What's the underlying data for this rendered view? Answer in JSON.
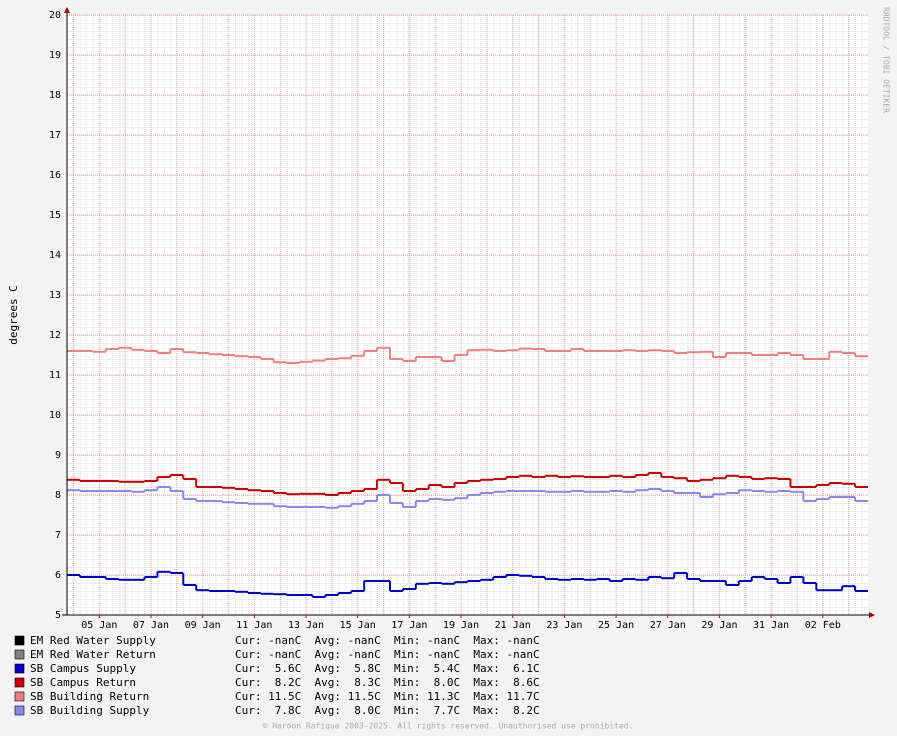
{
  "chart_data": {
    "type": "line",
    "step": true,
    "y_label": "degrees C",
    "watermark": "RRDTOOL / TOBI OETIKER",
    "footer": "© Haroon Rafique 2003-2025. All rights reserved. Unauthorised use prohibited.",
    "ylim": [
      5,
      20
    ],
    "yticks": [
      5,
      6,
      7,
      8,
      9,
      10,
      11,
      12,
      13,
      14,
      15,
      16,
      17,
      18,
      19,
      20
    ],
    "grid": true,
    "categories": [
      null,
      null,
      "05 Jan",
      null,
      null,
      null,
      "07 Jan",
      null,
      null,
      null,
      "09 Jan",
      null,
      null,
      null,
      "11 Jan",
      null,
      null,
      null,
      "13 Jan",
      null,
      null,
      null,
      "15 Jan",
      null,
      null,
      null,
      "17 Jan",
      null,
      null,
      null,
      "19 Jan",
      null,
      null,
      null,
      "21 Jan",
      null,
      null,
      null,
      "23 Jan",
      null,
      null,
      null,
      "25 Jan",
      null,
      null,
      null,
      "27 Jan",
      null,
      null,
      null,
      "29 Jan",
      null,
      null,
      null,
      "31 Jan",
      null,
      null,
      null,
      "02 Feb",
      null,
      null,
      null
    ],
    "series": [
      {
        "name": "EM Red Water Supply",
        "color": "#000000",
        "stats": "Cur: -nanC  Avg: -nanC  Min: -nanC  Max: -nanC"
      },
      {
        "name": "EM Red Water Return",
        "color": "#808080",
        "stats": "Cur: -nanC  Avg: -nanC  Min: -nanC  Max: -nanC"
      },
      {
        "name": "SB Campus Supply",
        "color": "#0000cc",
        "stats": "Cur:  5.6C  Avg:  5.8C  Min:  5.4C  Max:  6.1C",
        "values": [
          6.0,
          5.95,
          5.95,
          5.9,
          5.88,
          5.88,
          5.95,
          6.08,
          6.05,
          5.75,
          5.62,
          5.6,
          5.6,
          5.58,
          5.55,
          5.53,
          5.52,
          5.5,
          5.5,
          5.45,
          5.5,
          5.55,
          5.6,
          5.85,
          5.85,
          5.6,
          5.65,
          5.78,
          5.8,
          5.78,
          5.82,
          5.85,
          5.88,
          5.95,
          6.0,
          5.98,
          5.95,
          5.9,
          5.88,
          5.9,
          5.88,
          5.9,
          5.85,
          5.9,
          5.88,
          5.95,
          5.92,
          6.05,
          5.9,
          5.85,
          5.85,
          5.75,
          5.85,
          5.95,
          5.9,
          5.8,
          5.95,
          5.8,
          5.62,
          5.62,
          5.72,
          5.6
        ]
      },
      {
        "name": "SB Campus Return",
        "color": "#cc0000",
        "stats": "Cur:  8.2C  Avg:  8.3C  Min:  8.0C  Max:  8.6C",
        "values": [
          8.38,
          8.35,
          8.35,
          8.35,
          8.33,
          8.33,
          8.35,
          8.45,
          8.5,
          8.4,
          8.2,
          8.2,
          8.18,
          8.15,
          8.12,
          8.1,
          8.05,
          8.02,
          8.03,
          8.03,
          8.0,
          8.05,
          8.1,
          8.15,
          8.38,
          8.3,
          8.1,
          8.15,
          8.25,
          8.2,
          8.3,
          8.35,
          8.38,
          8.4,
          8.45,
          8.48,
          8.45,
          8.48,
          8.45,
          8.47,
          8.45,
          8.45,
          8.48,
          8.45,
          8.5,
          8.55,
          8.45,
          8.42,
          8.35,
          8.38,
          8.42,
          8.48,
          8.45,
          8.4,
          8.42,
          8.4,
          8.2,
          8.2,
          8.25,
          8.3,
          8.28,
          8.2
        ]
      },
      {
        "name": "SB Building Return",
        "color": "#f08080",
        "stats": "Cur: 11.5C  Avg: 11.5C  Min: 11.3C  Max: 11.7C",
        "values": [
          11.6,
          11.6,
          11.58,
          11.65,
          11.68,
          11.63,
          11.6,
          11.55,
          11.65,
          11.57,
          11.55,
          11.52,
          11.5,
          11.47,
          11.45,
          11.4,
          11.32,
          11.3,
          11.33,
          11.36,
          11.4,
          11.42,
          11.48,
          11.6,
          11.68,
          11.4,
          11.35,
          11.45,
          11.45,
          11.35,
          11.5,
          11.62,
          11.63,
          11.6,
          11.62,
          11.66,
          11.65,
          11.6,
          11.6,
          11.65,
          11.6,
          11.6,
          11.6,
          11.62,
          11.6,
          11.62,
          11.6,
          11.55,
          11.57,
          11.58,
          11.45,
          11.55,
          11.55,
          11.5,
          11.5,
          11.55,
          11.5,
          11.4,
          11.4,
          11.58,
          11.55,
          11.47
        ]
      },
      {
        "name": "SB Building Supply",
        "color": "#8888ee",
        "stats": "Cur:  7.8C  Avg:  8.0C  Min:  7.7C  Max:  8.2C",
        "values": [
          8.12,
          8.1,
          8.1,
          8.1,
          8.1,
          8.08,
          8.12,
          8.2,
          8.1,
          7.9,
          7.85,
          7.85,
          7.82,
          7.8,
          7.78,
          7.78,
          7.72,
          7.7,
          7.7,
          7.7,
          7.68,
          7.72,
          7.78,
          7.85,
          8.0,
          7.8,
          7.7,
          7.85,
          7.9,
          7.88,
          7.92,
          8.0,
          8.05,
          8.08,
          8.1,
          8.1,
          8.1,
          8.08,
          8.08,
          8.1,
          8.08,
          8.08,
          8.1,
          8.08,
          8.12,
          8.15,
          8.1,
          8.05,
          8.05,
          7.95,
          8.02,
          8.05,
          8.12,
          8.1,
          8.08,
          8.1,
          8.08,
          7.85,
          7.9,
          7.95,
          7.95,
          7.85
        ]
      }
    ]
  }
}
